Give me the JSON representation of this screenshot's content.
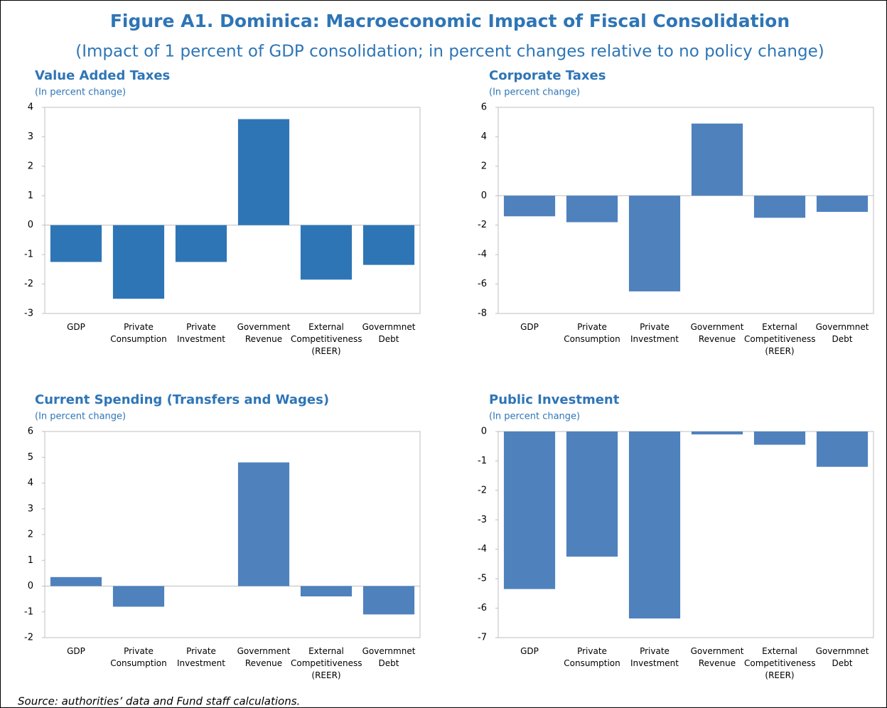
{
  "title": "Figure A1. Dominica: Macroeconomic Impact of Fiscal Consolidation",
  "subtitle": "(Impact of 1 percent of GDP consolidation; in percent changes relative to no policy change)",
  "source": "Source: authorities’ data and Fund staff calculations.",
  "chart_data": [
    {
      "type": "bar",
      "title": "Value Added Taxes",
      "subtitle": "(In percent change)",
      "categories": [
        "GDP",
        "Private\nConsumption",
        "Private\nInvestment",
        "Government\nRevenue",
        "External\nCompetitiveness\n(REER)",
        "Governmnet\nDebt"
      ],
      "values": [
        -1.25,
        -2.5,
        -1.25,
        3.6,
        -1.85,
        -1.35
      ],
      "color": "#2e75b6",
      "ylim": [
        -3,
        4
      ],
      "yticks": [
        -3,
        -2,
        -1,
        0,
        1,
        2,
        3,
        4
      ]
    },
    {
      "type": "bar",
      "title": "Corporate Taxes",
      "subtitle": "(In percent change)",
      "categories": [
        "GDP",
        "Private\nConsumption",
        "Private\nInvestment",
        "Government\nRevenue",
        "External\nCompetitiveness\n(REER)",
        "Governmnet\nDebt"
      ],
      "values": [
        -1.4,
        -1.8,
        -6.5,
        4.9,
        -1.5,
        -1.1
      ],
      "color": "#4f81bd",
      "ylim": [
        -8,
        6
      ],
      "yticks": [
        -8,
        -6,
        -4,
        -2,
        0,
        2,
        4,
        6
      ]
    },
    {
      "type": "bar",
      "title": "Current Spending (Transfers and Wages)",
      "subtitle": "(In percent change)",
      "categories": [
        "GDP",
        "Private\nConsumption",
        "Private\nInvestment",
        "Government\nRevenue",
        "External\nCompetitiveness\n(REER)",
        "Governmnet\nDebt"
      ],
      "values": [
        0.35,
        -0.8,
        0,
        4.8,
        -0.4,
        -1.1
      ],
      "color": "#4f81bd",
      "ylim": [
        -2,
        6
      ],
      "yticks": [
        -2,
        -1,
        0,
        1,
        2,
        3,
        4,
        5,
        6
      ]
    },
    {
      "type": "bar",
      "title": "Public Investment",
      "subtitle": "(In percent change)",
      "categories": [
        "GDP",
        "Private\nConsumption",
        "Private\nInvestment",
        "Government\nRevenue",
        "External\nCompetitiveness\n(REER)",
        "Governmnet\nDebt"
      ],
      "values": [
        -5.35,
        -4.25,
        -6.35,
        -0.1,
        -0.45,
        -1.2
      ],
      "color": "#4f81bd",
      "ylim": [
        -7,
        0
      ],
      "yticks": [
        -7,
        -6,
        -5,
        -4,
        -3,
        -2,
        -1,
        0
      ]
    }
  ]
}
